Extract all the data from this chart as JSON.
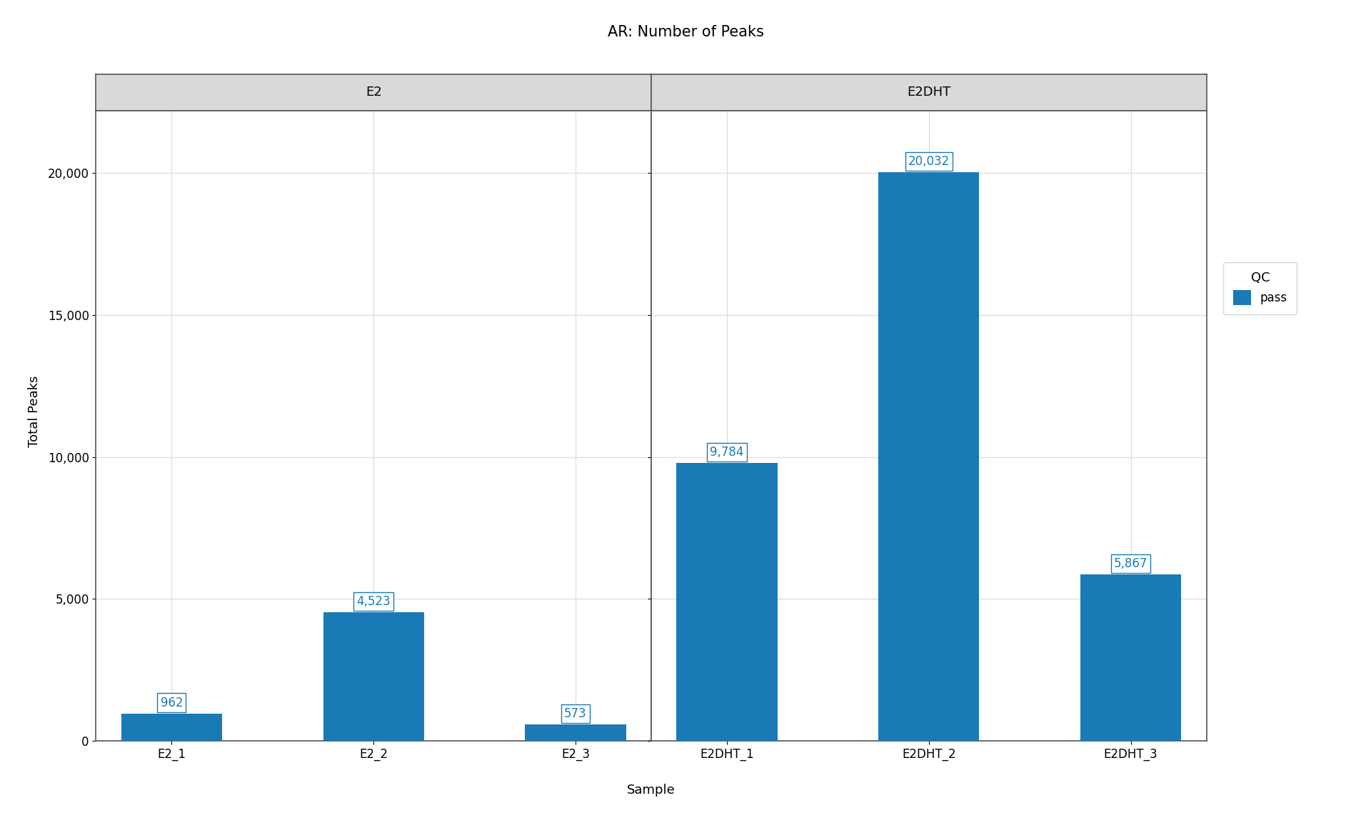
{
  "title": "AR: Number of Peaks",
  "xlabel": "Sample",
  "ylabel": "Total Peaks",
  "panels": [
    {
      "label": "E2",
      "samples": [
        "E2_1",
        "E2_2",
        "E2_3"
      ],
      "values": [
        962,
        4523,
        573
      ],
      "qc": [
        "pass",
        "pass",
        "pass"
      ]
    },
    {
      "label": "E2DHT",
      "samples": [
        "E2DHT_1",
        "E2DHT_2",
        "E2DHT_3"
      ],
      "values": [
        9784,
        20032,
        5867
      ],
      "qc": [
        "pass",
        "pass",
        "pass"
      ]
    }
  ],
  "bar_color_pass": "#1a7ab5",
  "bar_color_exclude": "#e06c6c",
  "label_color": "#1a7ab5",
  "label_fontsize": 12,
  "legend_title": "QC",
  "legend_items": [
    {
      "label": "pass",
      "color": "#1a7ab5"
    }
  ],
  "ylim": [
    0,
    22200
  ],
  "yticks": [
    0,
    5000,
    10000,
    15000,
    20000
  ],
  "strip_bg": "#d9d9d9",
  "strip_border": "#555555",
  "strip_fontsize": 13,
  "title_fontsize": 15,
  "axis_label_fontsize": 13,
  "tick_fontsize": 12,
  "background_color": "white",
  "grid_color": "#dddddd",
  "panel_border_color": "#555555",
  "bar_width": 0.5
}
